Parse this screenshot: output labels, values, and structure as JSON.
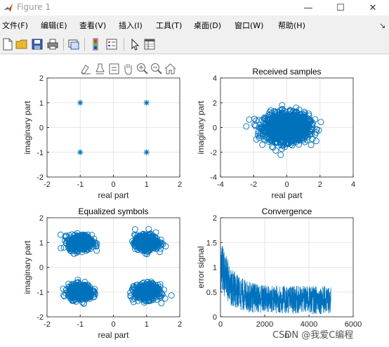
{
  "window": {
    "title": "Figure 1",
    "minimize": "—",
    "maximize": "☐",
    "close": "✕"
  },
  "menu": {
    "items": [
      "文件(F)",
      "编辑(E)",
      "查看(V)",
      "插入(I)",
      "工具(T)",
      "桌面(D)",
      "窗口(W)",
      "帮助(H)"
    ],
    "pin": "↘"
  },
  "toolbar": {
    "icons": [
      "new-figure-icon",
      "open-folder-icon",
      "save-icon",
      "print-icon",
      "link-plot-icon",
      "colorbar-icon",
      "legend-icon",
      "pointer-icon",
      "property-inspector-icon"
    ]
  },
  "axes_toolbar": {
    "icons": [
      "brush-icon",
      "data-tips-icon",
      "export-icon",
      "pan-icon",
      "zoom-in-icon",
      "zoom-out-icon",
      "home-icon"
    ]
  },
  "colors": {
    "series": "#0072bd",
    "grid": "#e6e6e6",
    "axis": "#262626"
  },
  "watermark": "CSDN @我爱C编程",
  "chart_data": [
    {
      "type": "scatter",
      "title": "",
      "xlabel": "real part",
      "ylabel": "imaginary part",
      "xlim": [
        -2,
        2
      ],
      "ylim": [
        -2,
        2
      ],
      "xticks": [
        "-2",
        "-1",
        "0",
        "1",
        "2"
      ],
      "yticks": [
        "-2",
        "-1",
        "0",
        "1",
        "2"
      ],
      "marker": "*",
      "grid": true,
      "points": [
        [
          -1,
          1
        ],
        [
          1,
          1
        ],
        [
          -1,
          -1
        ],
        [
          1,
          -1
        ]
      ]
    },
    {
      "type": "scatter",
      "title": "Received samples",
      "xlabel": "real part",
      "ylabel": "imaginary part",
      "xlim": [
        -4,
        4
      ],
      "ylim": [
        -4,
        4
      ],
      "xticks": [
        "-4",
        "-2",
        "0",
        "2",
        "4"
      ],
      "yticks": [
        "-4",
        "-2",
        "0",
        "2",
        "4"
      ],
      "marker": "o",
      "grid": true,
      "clusters": [
        {
          "center": [
            0,
            0
          ],
          "spread_x": 1.3,
          "spread_y": 1.1,
          "count": 1500
        }
      ]
    },
    {
      "type": "scatter",
      "title": "Equalized symbols",
      "xlabel": "real part",
      "ylabel": "imaginary part",
      "xlim": [
        -2,
        2
      ],
      "ylim": [
        -2,
        2
      ],
      "xticks": [
        "-2",
        "-1",
        "0",
        "1",
        "2"
      ],
      "yticks": [
        "-2",
        "-1",
        "0",
        "1",
        "2"
      ],
      "marker": "o",
      "grid": true,
      "clusters": [
        {
          "center": [
            -1,
            1
          ],
          "spread_x": 0.35,
          "spread_y": 0.3,
          "count": 500
        },
        {
          "center": [
            1,
            1
          ],
          "spread_x": 0.35,
          "spread_y": 0.3,
          "count": 500
        },
        {
          "center": [
            -1,
            -1
          ],
          "spread_x": 0.35,
          "spread_y": 0.3,
          "count": 500
        },
        {
          "center": [
            1,
            -1
          ],
          "spread_x": 0.35,
          "spread_y": 0.3,
          "count": 500
        }
      ]
    },
    {
      "type": "line",
      "title": "Convergence",
      "xlabel": "n",
      "ylabel": "error signal",
      "xlim": [
        0,
        6000
      ],
      "ylim": [
        0,
        2
      ],
      "xticks": [
        "0",
        "2000",
        "4000",
        "6000"
      ],
      "yticks": [
        "0",
        "0.5",
        "1",
        "1.5",
        "2"
      ],
      "grid": true,
      "n_samples": 5000,
      "envelope": {
        "start_high": 1.6,
        "end_high": 0.7,
        "start_low": 0.5,
        "end_low": 0.05,
        "decay_to": 700
      }
    }
  ]
}
